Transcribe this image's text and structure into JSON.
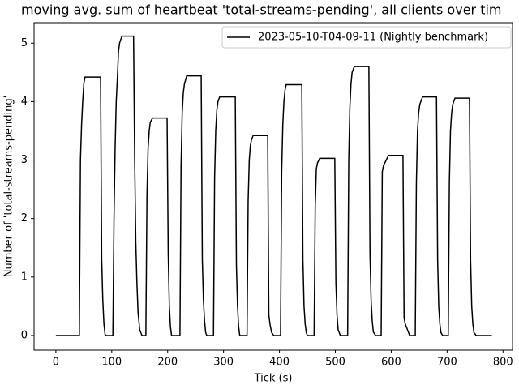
{
  "chart_data": {
    "type": "line",
    "title": "moving avg. sum of heartbeat 'total-streams-pending', all clients over tim",
    "xlabel": "Tick (s)",
    "ylabel": "Number of 'total-streams-pending'",
    "xlim": [
      -39,
      817
    ],
    "ylim": [
      -0.25,
      5.35
    ],
    "xticks": [
      0,
      100,
      200,
      300,
      400,
      500,
      600,
      700,
      800
    ],
    "yticks": [
      0,
      1,
      2,
      3,
      4,
      5
    ],
    "legend": "upper right",
    "series": [
      {
        "name": "2023-05-10-T04-09-11 (Nightly benchmark)",
        "color": "#000000",
        "x": [
          0,
          42,
          44,
          46,
          48,
          50,
          52,
          80,
          82,
          84,
          86,
          88,
          90,
          102,
          104,
          106,
          108,
          110,
          112,
          114,
          118,
          139,
          141,
          143,
          145,
          147,
          150,
          154,
          161,
          163,
          165,
          167,
          169,
          173,
          199,
          201,
          203,
          205,
          207,
          222,
          224,
          226,
          228,
          230,
          234,
          260,
          262,
          264,
          266,
          268,
          270,
          282,
          284,
          286,
          288,
          290,
          293,
          321,
          323,
          325,
          327,
          329,
          342,
          344,
          346,
          348,
          350,
          353,
          379,
          381,
          383,
          386,
          390,
          402,
          404,
          406,
          408,
          410,
          412,
          440,
          442,
          444,
          446,
          448,
          450,
          462,
          464,
          466,
          468,
          472,
          499,
          501,
          503,
          505,
          509,
          522,
          524,
          526,
          528,
          530,
          534,
          560,
          562,
          564,
          566,
          568,
          572,
          582,
          584,
          586,
          595,
          621,
          623,
          625,
          633,
          643,
          645,
          647,
          649,
          651,
          656,
          681,
          683,
          685,
          687,
          689,
          692,
          702,
          704,
          706,
          708,
          710,
          714,
          740,
          742,
          744,
          746,
          748,
          752,
          780
        ],
        "values": [
          0,
          0,
          3.0,
          3.6,
          4.0,
          4.3,
          4.42,
          4.42,
          1.3,
          0.6,
          0.2,
          0.02,
          0,
          0,
          2.0,
          3.2,
          4.0,
          4.4,
          4.85,
          5.0,
          5.12,
          5.12,
          3.0,
          1.6,
          0.9,
          0.4,
          0.1,
          0,
          0,
          2.4,
          3.2,
          3.5,
          3.65,
          3.72,
          3.72,
          1.4,
          0.5,
          0.15,
          0,
          0,
          2.9,
          3.8,
          4.15,
          4.3,
          4.44,
          4.44,
          1.3,
          0.6,
          0.25,
          0.05,
          0,
          0,
          2.7,
          3.5,
          3.85,
          4.0,
          4.08,
          4.08,
          1.2,
          0.5,
          0.15,
          0,
          0,
          2.3,
          3.0,
          3.25,
          3.35,
          3.42,
          3.42,
          0.35,
          0.2,
          0.05,
          0,
          0,
          2.8,
          3.6,
          4.0,
          4.2,
          4.29,
          4.29,
          1.3,
          0.5,
          0.2,
          0.05,
          0,
          0,
          2.2,
          2.85,
          2.95,
          3.03,
          3.03,
          0.9,
          0.35,
          0.1,
          0,
          0,
          3.0,
          3.9,
          4.3,
          4.5,
          4.6,
          4.6,
          1.4,
          0.6,
          0.25,
          0.06,
          0,
          0,
          2.8,
          2.9,
          3.08,
          3.08,
          0.3,
          0.2,
          0,
          0,
          2.6,
          3.5,
          3.8,
          3.95,
          4.08,
          4.08,
          1.3,
          0.5,
          0.2,
          0.05,
          0,
          0,
          2.6,
          3.5,
          3.8,
          3.95,
          4.06,
          4.06,
          1.3,
          0.5,
          0.2,
          0.05,
          0,
          0
        ]
      }
    ]
  }
}
